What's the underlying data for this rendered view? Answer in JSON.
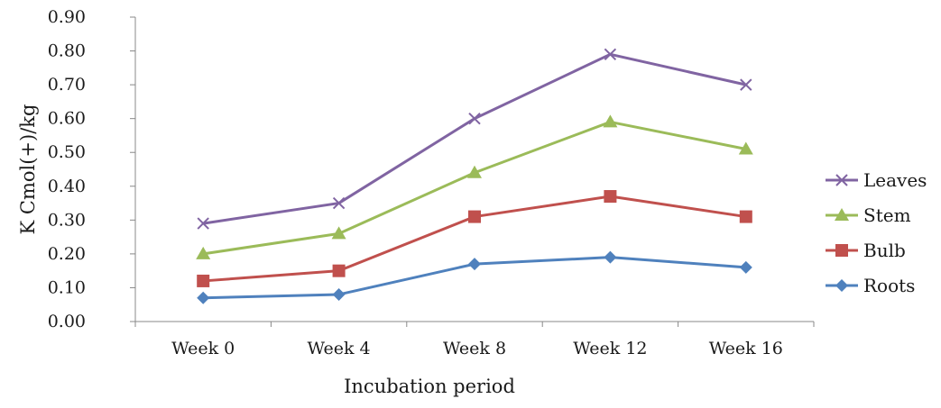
{
  "chart_data": {
    "type": "line",
    "title": "",
    "xlabel": "Incubation period",
    "ylabel": "K Cmol(+)/kg",
    "categories": [
      "Week 0",
      "Week 4",
      "Week 8",
      "Week 12",
      "Week 16"
    ],
    "ylim": [
      0,
      0.9
    ],
    "yticks": [
      "0.00",
      "0.10",
      "0.20",
      "0.30",
      "0.40",
      "0.50",
      "0.60",
      "0.70",
      "0.80",
      "0.90"
    ],
    "grid": false,
    "legend": "right",
    "series": [
      {
        "name": "Leaves",
        "color": "#8064a2",
        "marker": "x",
        "values": [
          0.29,
          0.35,
          0.6,
          0.79,
          0.7
        ]
      },
      {
        "name": "Stem",
        "color": "#9bbb59",
        "marker": "triangle",
        "values": [
          0.2,
          0.26,
          0.44,
          0.59,
          0.51
        ]
      },
      {
        "name": "Bulb",
        "color": "#c0504d",
        "marker": "square",
        "values": [
          0.12,
          0.15,
          0.31,
          0.37,
          0.31
        ]
      },
      {
        "name": "Roots",
        "color": "#4f81bd",
        "marker": "diamond",
        "values": [
          0.07,
          0.08,
          0.17,
          0.19,
          0.16
        ]
      }
    ]
  }
}
